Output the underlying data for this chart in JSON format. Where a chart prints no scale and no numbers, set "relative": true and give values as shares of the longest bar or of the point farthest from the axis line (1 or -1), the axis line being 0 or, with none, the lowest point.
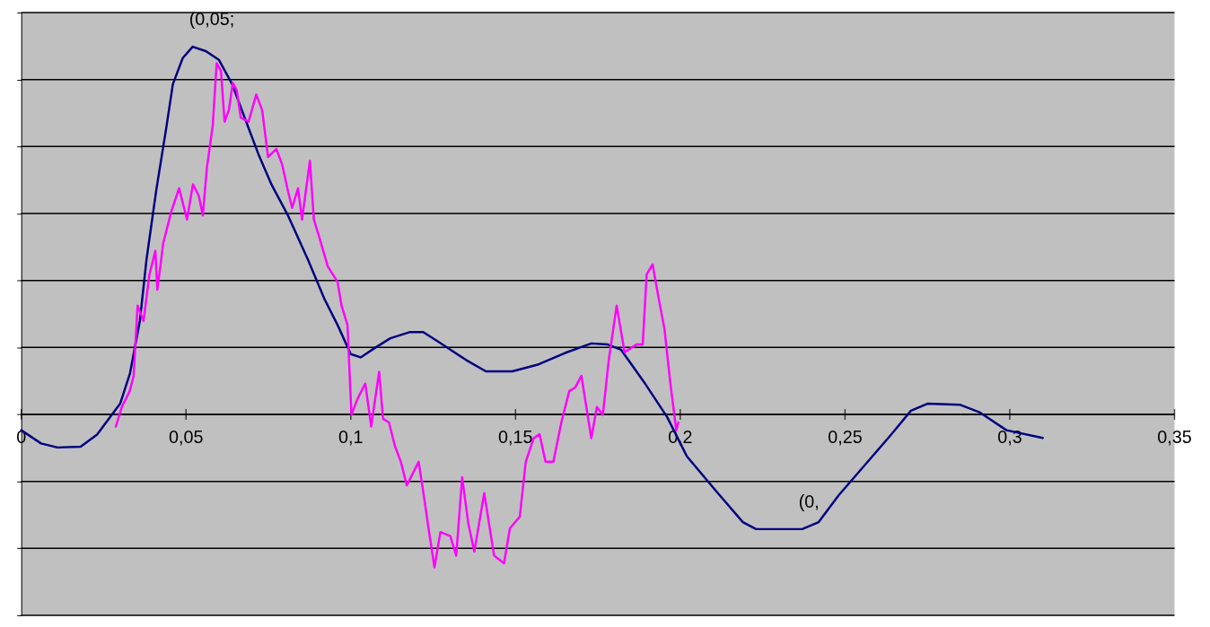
{
  "chart_data": {
    "type": "line",
    "line_style": "solid",
    "relative": true,
    "grid": "y",
    "xlim": [
      0,
      0.35
    ],
    "xticks": [
      0,
      {
        "value": 0.05,
        "label": "0,05"
      },
      {
        "value": 0.1,
        "label": "0,1"
      },
      {
        "value": 0.15,
        "label": "0,15"
      },
      {
        "value": 0.2,
        "label": "0,2"
      },
      {
        "value": 0.25,
        "label": "0,25"
      },
      {
        "value": 0.3,
        "label": "0,3"
      },
      {
        "value": 0.35,
        "label": "0,35"
      }
    ],
    "annotations": [
      {
        "text": "(0,05;",
        "x": 0.052,
        "y": 1.0
      },
      {
        "text": "(0,",
        "x": 0.237,
        "y": -0.312
      }
    ],
    "series": [
      {
        "color": "#000080",
        "x": [
          0,
          0.006,
          0.011,
          0.018,
          0.023,
          0.027,
          0.03,
          0.033,
          0.036,
          0.038,
          0.041,
          0.044,
          0.046,
          0.049,
          0.052,
          0.056,
          0.06,
          0.064,
          0.068,
          0.072,
          0.076,
          0.081,
          0.087,
          0.092,
          0.096,
          0.1,
          0.103,
          0.107,
          0.112,
          0.118,
          0.122,
          0.127,
          0.135,
          0.141,
          0.149,
          0.157,
          0.165,
          0.173,
          0.178,
          0.182,
          0.189,
          0.196,
          0.202,
          0.211,
          0.219,
          0.223,
          0.237,
          0.242,
          0.248,
          0.256,
          0.264,
          0.27,
          0.275,
          0.285,
          0.291,
          0.299,
          0.31
        ],
        "values": [
          -0.043,
          -0.079,
          -0.09,
          -0.088,
          -0.055,
          -0.007,
          0.029,
          0.112,
          0.255,
          0.421,
          0.612,
          0.779,
          0.898,
          0.969,
          1.0,
          0.988,
          0.964,
          0.898,
          0.802,
          0.707,
          0.624,
          0.54,
          0.421,
          0.314,
          0.243,
          0.164,
          0.155,
          0.179,
          0.207,
          0.224,
          0.224,
          0.195,
          0.148,
          0.117,
          0.117,
          0.136,
          0.167,
          0.193,
          0.19,
          0.176,
          0.088,
          -0.007,
          -0.114,
          -0.21,
          -0.293,
          -0.312,
          -0.312,
          -0.293,
          -0.221,
          -0.138,
          -0.055,
          0.01,
          0.029,
          0.026,
          0.005,
          -0.043,
          -0.064
        ]
      },
      {
        "color": "#ff00ff",
        "x": [
          0.0287,
          0.0305,
          0.0329,
          0.0341,
          0.0353,
          0.0371,
          0.0389,
          0.0407,
          0.0413,
          0.0431,
          0.0455,
          0.0479,
          0.0503,
          0.0521,
          0.0539,
          0.0551,
          0.0563,
          0.0581,
          0.0593,
          0.0606,
          0.0617,
          0.063,
          0.0642,
          0.0654,
          0.0666,
          0.069,
          0.0713,
          0.0731,
          0.0749,
          0.0774,
          0.0792,
          0.081,
          0.0822,
          0.084,
          0.0852,
          0.0876,
          0.0888,
          0.0906,
          0.093,
          0.096,
          0.0972,
          0.099,
          0.1002,
          0.102,
          0.1044,
          0.1062,
          0.1086,
          0.1098,
          0.1116,
          0.1134,
          0.1152,
          0.117,
          0.1188,
          0.1206,
          0.1224,
          0.1236,
          0.1254,
          0.1272,
          0.1302,
          0.132,
          0.1338,
          0.1357,
          0.1375,
          0.1405,
          0.1435,
          0.1465,
          0.1483,
          0.1513,
          0.1531,
          0.1555,
          0.1573,
          0.1591,
          0.1615,
          0.1639,
          0.1663,
          0.1681,
          0.17,
          0.173,
          0.1747,
          0.1765,
          0.1783,
          0.1807,
          0.1831,
          0.1867,
          0.1886,
          0.1898,
          0.1916,
          0.1934,
          0.1952,
          0.197,
          0.1988,
          0.1994
        ],
        "values": [
          -0.033,
          0.02,
          0.063,
          0.105,
          0.296,
          0.254,
          0.381,
          0.445,
          0.339,
          0.466,
          0.551,
          0.615,
          0.53,
          0.626,
          0.594,
          0.541,
          0.668,
          0.785,
          0.955,
          0.934,
          0.796,
          0.828,
          0.902,
          0.881,
          0.807,
          0.796,
          0.87,
          0.828,
          0.7,
          0.722,
          0.679,
          0.605,
          0.562,
          0.615,
          0.53,
          0.69,
          0.53,
          0.477,
          0.403,
          0.36,
          0.296,
          0.243,
          -0.001,
          0.041,
          0.084,
          -0.033,
          0.116,
          -0.012,
          -0.022,
          -0.086,
          -0.129,
          -0.193,
          -0.161,
          -0.129,
          -0.235,
          -0.31,
          -0.416,
          -0.32,
          -0.331,
          -0.384,
          -0.171,
          -0.298,
          -0.373,
          -0.214,
          -0.384,
          -0.405,
          -0.31,
          -0.278,
          -0.129,
          -0.065,
          -0.054,
          -0.129,
          -0.129,
          -0.022,
          0.063,
          0.073,
          0.105,
          -0.065,
          0.02,
          -0.001,
          0.148,
          0.296,
          0.169,
          0.19,
          0.19,
          0.381,
          0.408,
          0.318,
          0.233,
          0.084,
          -0.044,
          -0.022
        ]
      }
    ]
  }
}
